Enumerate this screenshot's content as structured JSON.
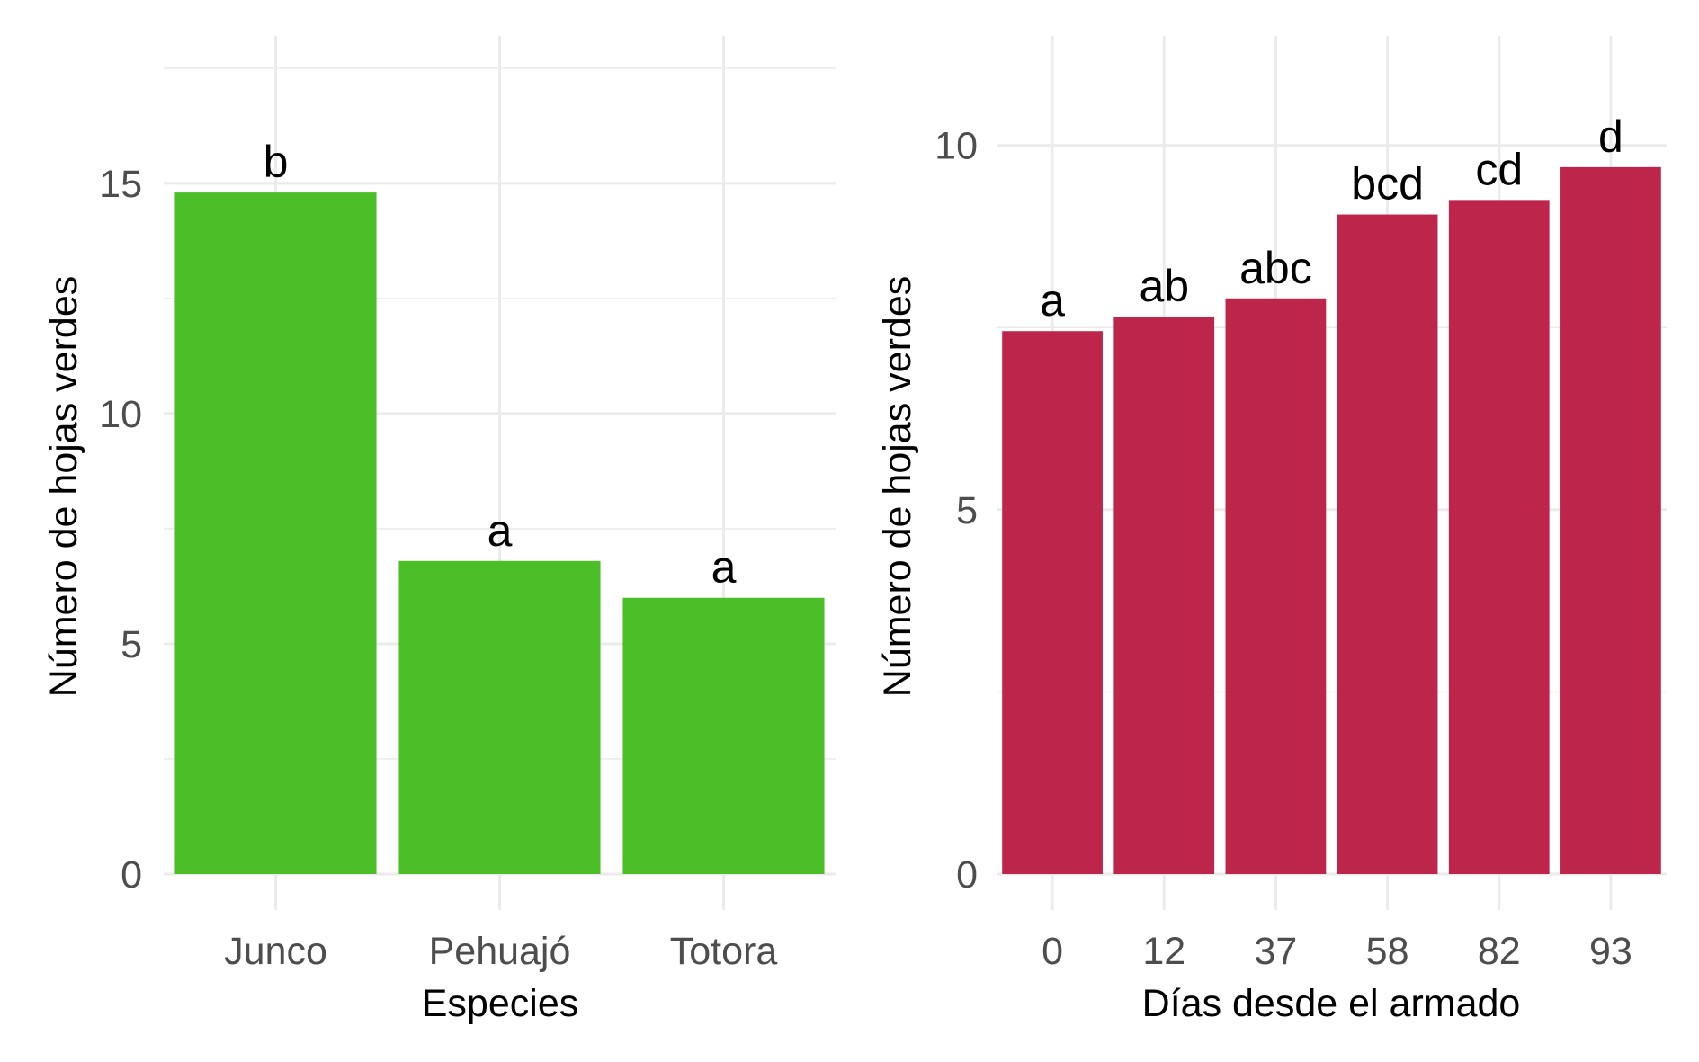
{
  "chart_data": [
    {
      "type": "bar",
      "categories": [
        "Junco",
        "Pehuajó",
        "Totora"
      ],
      "values": [
        14.8,
        6.8,
        6.0
      ],
      "bar_labels": [
        "b",
        "a",
        "a"
      ],
      "xlabel": "Especies",
      "ylabel": "Número de hojas verdes",
      "ylim": [
        0,
        18.2
      ],
      "yticks": [
        0,
        5,
        10,
        15
      ],
      "ytick_labels": [
        "0",
        "5",
        "10",
        "15"
      ],
      "grid": true,
      "color": "#4cbe27"
    },
    {
      "type": "bar",
      "categories": [
        "0",
        "12",
        "37",
        "58",
        "82",
        "93"
      ],
      "values": [
        7.45,
        7.65,
        7.9,
        9.05,
        9.25,
        9.7
      ],
      "bar_labels": [
        "a",
        "ab",
        "abc",
        "bcd",
        "cd",
        "d"
      ],
      "xlabel": "Días desde el armado",
      "ylabel": "Número de hojas verdes",
      "ylim": [
        0,
        11.5
      ],
      "yticks": [
        0,
        5,
        10
      ],
      "ytick_labels": [
        "0",
        "5",
        "10"
      ],
      "grid": true,
      "color": "#be254a"
    }
  ]
}
